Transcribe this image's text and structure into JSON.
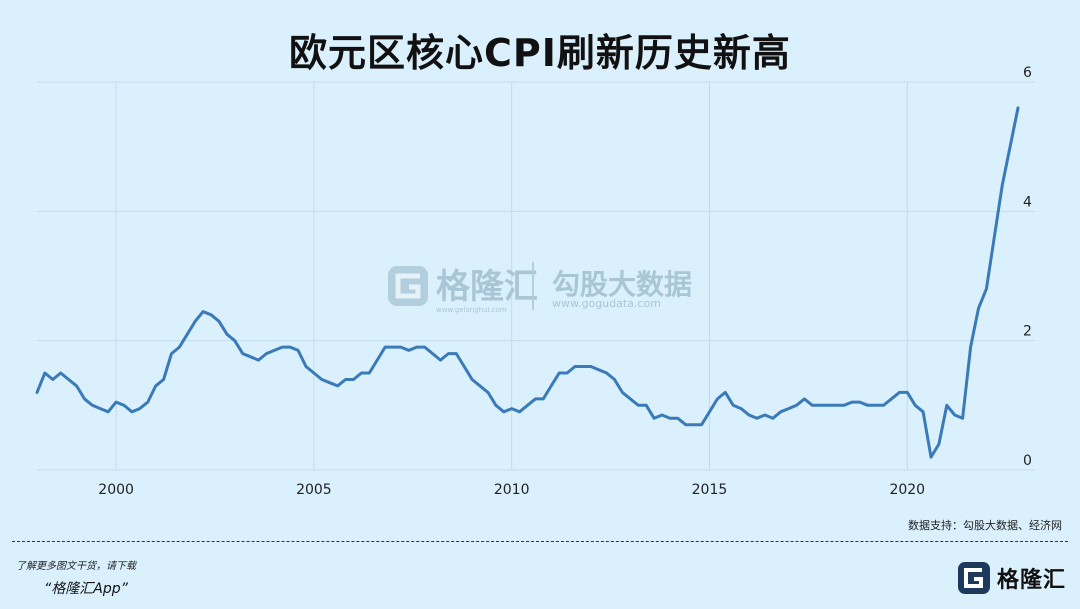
{
  "chart_data": {
    "type": "line",
    "title": "欧元区核心CPI刷新历史新高",
    "xlabel": "",
    "ylabel": "",
    "xlim": [
      1998.0,
      2022.85
    ],
    "ylim": [
      0,
      6
    ],
    "x_ticks": [
      2000,
      2005,
      2010,
      2015,
      2020
    ],
    "x_tick_labels": [
      "2000",
      "2005",
      "2010",
      "2015",
      "2020"
    ],
    "y_ticks": [
      0,
      2,
      4,
      6
    ],
    "y_tick_labels": [
      "0",
      "2",
      "4",
      "6"
    ],
    "y_axis_side": "right",
    "grid": true,
    "series": [
      {
        "color": "#3a7ab8",
        "x": [
          1998.0,
          1998.2,
          1998.4,
          1998.6,
          1998.8,
          1999.0,
          1999.2,
          1999.4,
          1999.6,
          1999.8,
          2000.0,
          2000.2,
          2000.4,
          2000.6,
          2000.8,
          2001.0,
          2001.2,
          2001.4,
          2001.6,
          2001.8,
          2002.0,
          2002.2,
          2002.4,
          2002.6,
          2002.8,
          2003.0,
          2003.2,
          2003.4,
          2003.6,
          2003.8,
          2004.0,
          2004.2,
          2004.4,
          2004.6,
          2004.8,
          2005.0,
          2005.2,
          2005.4,
          2005.6,
          2005.8,
          2006.0,
          2006.2,
          2006.4,
          2006.6,
          2006.8,
          2007.0,
          2007.2,
          2007.4,
          2007.6,
          2007.8,
          2008.0,
          2008.2,
          2008.4,
          2008.6,
          2008.8,
          2009.0,
          2009.2,
          2009.4,
          2009.6,
          2009.8,
          2010.0,
          2010.2,
          2010.4,
          2010.6,
          2010.8,
          2011.0,
          2011.2,
          2011.4,
          2011.6,
          2011.8,
          2012.0,
          2012.2,
          2012.4,
          2012.6,
          2012.8,
          2013.0,
          2013.2,
          2013.4,
          2013.6,
          2013.8,
          2014.0,
          2014.2,
          2014.4,
          2014.6,
          2014.8,
          2015.0,
          2015.2,
          2015.4,
          2015.6,
          2015.8,
          2016.0,
          2016.2,
          2016.4,
          2016.6,
          2016.8,
          2017.0,
          2017.2,
          2017.4,
          2017.6,
          2017.8,
          2018.0,
          2018.2,
          2018.4,
          2018.6,
          2018.8,
          2019.0,
          2019.2,
          2019.4,
          2019.6,
          2019.8,
          2020.0,
          2020.2,
          2020.4,
          2020.6,
          2020.8,
          2021.0,
          2021.2,
          2021.4,
          2021.6,
          2021.8,
          2022.0,
          2022.2,
          2022.4,
          2022.6,
          2022.8
        ],
        "y": [
          1.2,
          1.5,
          1.4,
          1.5,
          1.4,
          1.3,
          1.1,
          1.0,
          0.95,
          0.9,
          1.05,
          1.0,
          0.9,
          0.95,
          1.05,
          1.3,
          1.4,
          1.8,
          1.9,
          2.1,
          2.3,
          2.45,
          2.4,
          2.3,
          2.1,
          2.0,
          1.8,
          1.75,
          1.7,
          1.8,
          1.85,
          1.9,
          1.9,
          1.85,
          1.6,
          1.5,
          1.4,
          1.35,
          1.3,
          1.4,
          1.4,
          1.5,
          1.5,
          1.7,
          1.9,
          1.9,
          1.9,
          1.85,
          1.9,
          1.9,
          1.8,
          1.7,
          1.8,
          1.8,
          1.6,
          1.4,
          1.3,
          1.2,
          1.0,
          0.9,
          0.95,
          0.9,
          1.0,
          1.1,
          1.1,
          1.3,
          1.5,
          1.5,
          1.6,
          1.6,
          1.6,
          1.55,
          1.5,
          1.4,
          1.2,
          1.1,
          1.0,
          1.0,
          0.8,
          0.85,
          0.8,
          0.8,
          0.7,
          0.7,
          0.7,
          0.9,
          1.1,
          1.2,
          1.0,
          0.95,
          0.85,
          0.8,
          0.85,
          0.8,
          0.9,
          0.95,
          1.0,
          1.1,
          1.0,
          1.0,
          1.0,
          1.0,
          1.0,
          1.05,
          1.05,
          1.0,
          1.0,
          1.0,
          1.1,
          1.2,
          1.2,
          1.0,
          0.9,
          0.2,
          0.4,
          1.0,
          0.85,
          0.8,
          1.9,
          2.5,
          2.8,
          3.6,
          4.4,
          5.0,
          5.6
        ]
      }
    ],
    "watermark": {
      "brand_cn": "格隆汇",
      "brand_url": "www.gelonghui.com",
      "partner_cn": "勾股大数据",
      "partner_url": "www.gogudata.com"
    },
    "source": "数据支持：勾股大数据、经济网"
  },
  "footer": {
    "prompt": "了解更多图文干货，请下载",
    "app": "“格隆汇App”",
    "brand": "格隆汇"
  },
  "colors": {
    "background": "#daf1fd",
    "line": "#3a7ab8",
    "grid": "#c3dced"
  }
}
